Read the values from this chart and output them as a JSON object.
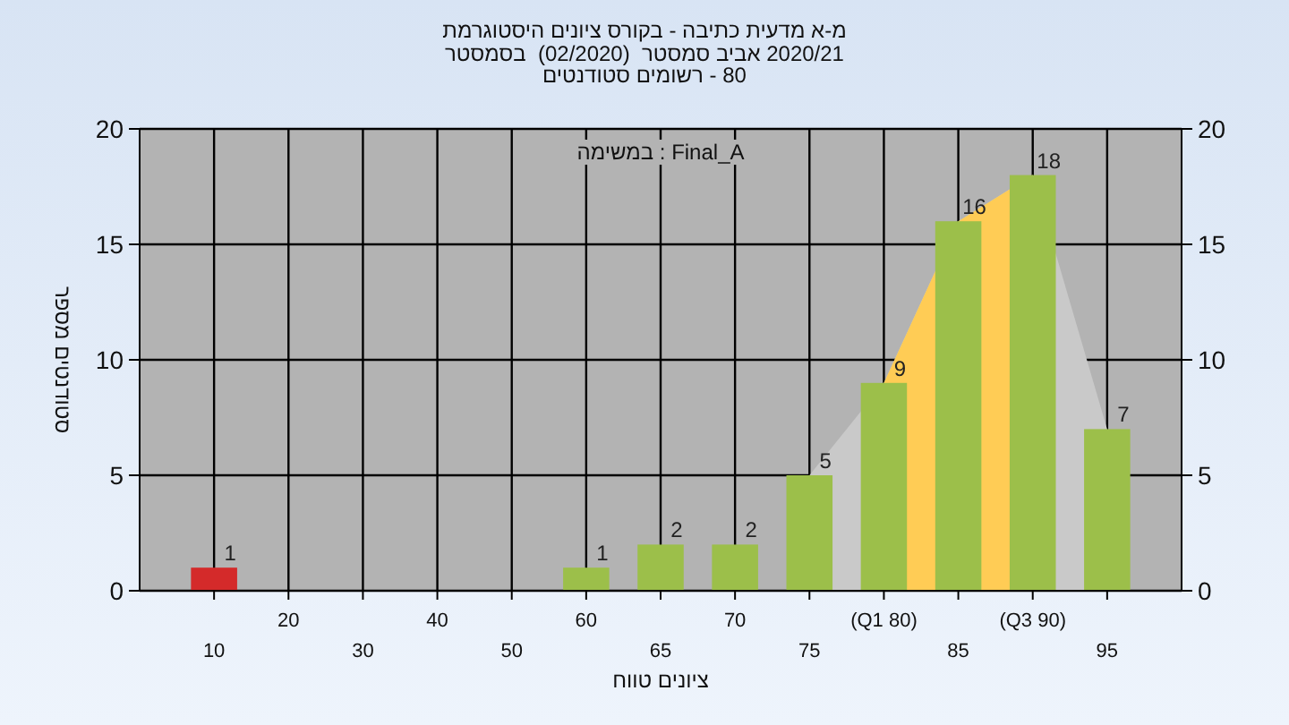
{
  "chart_data": {
    "type": "bar",
    "title": "היסטוגרמת ציונים בקורס - כתיבה מדעית מ-א\nבסמסטר  (02/2020)  סמסטר אביב 2020/21\nסטודנטים רשומים - 80",
    "xlabel": "טווח ציונים",
    "ylabel": "מספר סטודנטים",
    "annotations": [
      "במשימה : Final_A"
    ],
    "categories": [
      "10",
      "20",
      "30",
      "40",
      "50",
      "60",
      "65",
      "70",
      "75",
      "(Q1 80)",
      "85",
      "(Q3 90)",
      "95"
    ],
    "series": [
      {
        "type": "area",
        "color": "#c9c9c9",
        "values": [
          null,
          null,
          null,
          null,
          null,
          null,
          null,
          null,
          5,
          9,
          16,
          18,
          7
        ]
      },
      {
        "type": "area",
        "color": "#ffcc55",
        "values": [
          null,
          null,
          null,
          null,
          null,
          null,
          null,
          null,
          null,
          9,
          16,
          18,
          null
        ]
      },
      {
        "colors": [
          "#d42a2a",
          "#9cbf4a",
          "#9cbf4a",
          "#9cbf4a",
          "#9cbf4a",
          "#9cbf4a",
          "#9cbf4a",
          "#9cbf4a",
          "#9cbf4a",
          "#9cbf4a",
          "#9cbf4a",
          "#9cbf4a",
          "#9cbf4a"
        ],
        "values": [
          1,
          0,
          0,
          0,
          0,
          1,
          2,
          2,
          5,
          9,
          16,
          18,
          7
        ],
        "value_labels": [
          "1",
          null,
          null,
          null,
          null,
          "1",
          "2",
          "2",
          "5",
          "9",
          "16",
          "18",
          "7"
        ]
      }
    ],
    "ylim": [
      0,
      20
    ],
    "yticks": [
      0,
      5,
      10,
      15,
      20
    ],
    "y2lim": [
      0,
      20
    ],
    "y2ticks": [
      0,
      5,
      10,
      15,
      20
    ],
    "grid": true
  }
}
